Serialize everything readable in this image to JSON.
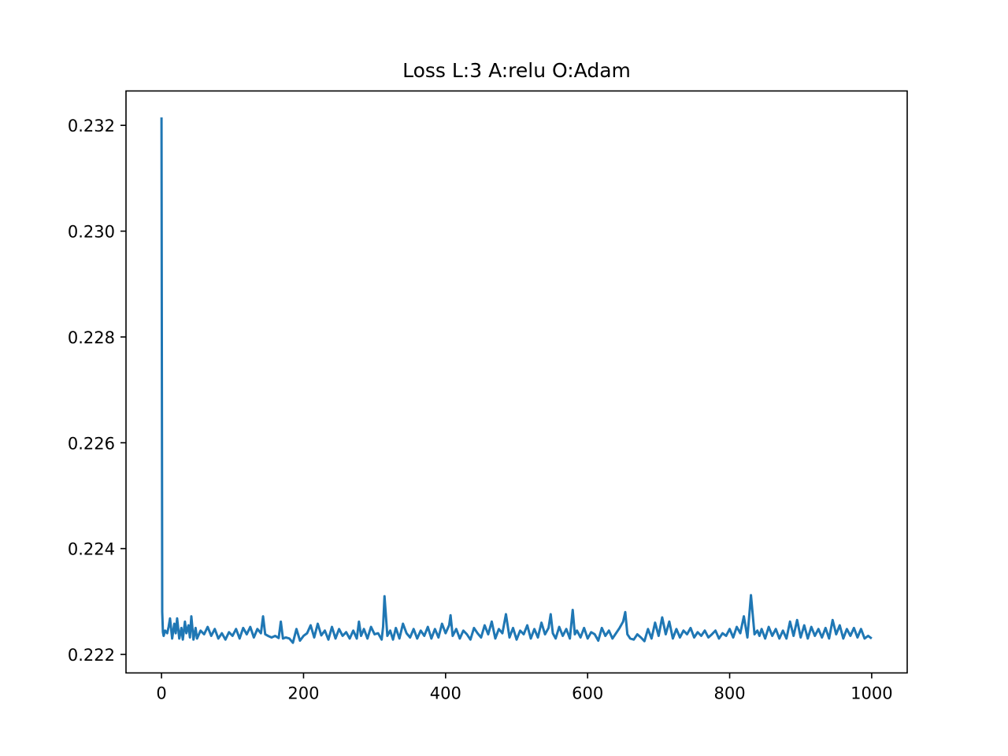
{
  "chart_data": {
    "type": "line",
    "title": "Loss L:3 A:relu O:Adam",
    "xlabel": "",
    "ylabel": "",
    "xlim": [
      -50,
      1050
    ],
    "ylim": [
      0.22165,
      0.23265
    ],
    "xticks": [
      0,
      200,
      400,
      600,
      800,
      1000
    ],
    "xtick_labels": [
      "0",
      "200",
      "400",
      "600",
      "800",
      "1000"
    ],
    "yticks": [
      0.222,
      0.224,
      0.226,
      0.228,
      0.23,
      0.232
    ],
    "ytick_labels": [
      "0.222",
      "0.224",
      "0.226",
      "0.228",
      "0.230",
      "0.232"
    ],
    "grid": false,
    "legend": "none",
    "series": [
      {
        "color": "#1f77b4",
        "x": [
          0,
          1,
          2,
          3,
          5,
          8,
          10,
          12,
          15,
          18,
          20,
          22,
          25,
          28,
          30,
          33,
          35,
          38,
          40,
          42,
          45,
          48,
          50,
          55,
          60,
          65,
          70,
          75,
          80,
          85,
          90,
          95,
          100,
          105,
          110,
          115,
          120,
          125,
          130,
          135,
          140,
          143,
          146,
          150,
          155,
          160,
          165,
          168,
          171,
          175,
          180,
          185,
          190,
          195,
          200,
          205,
          210,
          215,
          220,
          225,
          230,
          235,
          240,
          245,
          250,
          255,
          260,
          265,
          270,
          275,
          278,
          281,
          285,
          290,
          295,
          300,
          305,
          310,
          312,
          314,
          318,
          322,
          326,
          330,
          335,
          340,
          345,
          350,
          355,
          360,
          365,
          370,
          375,
          380,
          385,
          390,
          395,
          400,
          405,
          407,
          410,
          415,
          420,
          425,
          430,
          435,
          440,
          445,
          450,
          455,
          460,
          465,
          470,
          475,
          480,
          485,
          490,
          495,
          500,
          505,
          510,
          515,
          520,
          525,
          530,
          535,
          540,
          545,
          548,
          551,
          555,
          560,
          565,
          570,
          575,
          579,
          582,
          585,
          590,
          595,
          600,
          605,
          610,
          615,
          620,
          625,
          630,
          635,
          640,
          645,
          650,
          653,
          656,
          660,
          665,
          670,
          675,
          680,
          685,
          690,
          695,
          700,
          705,
          710,
          715,
          720,
          725,
          730,
          735,
          740,
          745,
          750,
          755,
          760,
          765,
          770,
          775,
          780,
          785,
          790,
          795,
          800,
          805,
          810,
          815,
          820,
          825,
          830,
          835,
          839,
          842,
          845,
          850,
          855,
          860,
          865,
          870,
          875,
          880,
          885,
          890,
          895,
          900,
          905,
          910,
          915,
          920,
          925,
          930,
          935,
          940,
          945,
          950,
          955,
          960,
          965,
          970,
          975,
          980,
          985,
          990,
          995,
          1000
        ],
        "y": [
          0.23215,
          0.2228,
          0.22242,
          0.22235,
          0.22245,
          0.2224,
          0.22252,
          0.22268,
          0.2223,
          0.22258,
          0.2224,
          0.22268,
          0.2223,
          0.2225,
          0.22228,
          0.22262,
          0.2224,
          0.22255,
          0.22232,
          0.22272,
          0.22228,
          0.2225,
          0.2223,
          0.22245,
          0.22238,
          0.22252,
          0.22235,
          0.22248,
          0.2223,
          0.2224,
          0.22228,
          0.22242,
          0.22235,
          0.22248,
          0.2223,
          0.2225,
          0.22238,
          0.22252,
          0.22232,
          0.22248,
          0.2224,
          0.22272,
          0.22238,
          0.22235,
          0.22232,
          0.22235,
          0.22231,
          0.22262,
          0.2223,
          0.22232,
          0.2223,
          0.22222,
          0.22248,
          0.22226,
          0.22235,
          0.2224,
          0.22255,
          0.22232,
          0.22258,
          0.22236,
          0.22245,
          0.22228,
          0.22252,
          0.2223,
          0.22248,
          0.22235,
          0.22242,
          0.2223,
          0.22245,
          0.2223,
          0.22262,
          0.22235,
          0.22248,
          0.2223,
          0.22252,
          0.22238,
          0.2224,
          0.22228,
          0.22252,
          0.2231,
          0.22235,
          0.22245,
          0.22228,
          0.2225,
          0.2223,
          0.22258,
          0.2224,
          0.22232,
          0.22248,
          0.2223,
          0.22245,
          0.22235,
          0.22252,
          0.2223,
          0.22248,
          0.22232,
          0.22258,
          0.2224,
          0.22255,
          0.22274,
          0.22235,
          0.22248,
          0.2223,
          0.22245,
          0.22238,
          0.22228,
          0.2225,
          0.2224,
          0.22232,
          0.22255,
          0.22238,
          0.22262,
          0.2223,
          0.22248,
          0.2224,
          0.22276,
          0.22232,
          0.2225,
          0.22228,
          0.22245,
          0.22238,
          0.22255,
          0.2223,
          0.22248,
          0.22232,
          0.2226,
          0.22238,
          0.2225,
          0.22276,
          0.2224,
          0.2223,
          0.22252,
          0.22235,
          0.22248,
          0.2223,
          0.22284,
          0.22238,
          0.22245,
          0.22232,
          0.2225,
          0.2223,
          0.22242,
          0.22238,
          0.22226,
          0.2225,
          0.22235,
          0.22245,
          0.2223,
          0.2224,
          0.2225,
          0.22262,
          0.2228,
          0.22238,
          0.2223,
          0.22228,
          0.22238,
          0.22232,
          0.22225,
          0.22248,
          0.2223,
          0.2226,
          0.22235,
          0.2227,
          0.22238,
          0.22262,
          0.2223,
          0.22248,
          0.22232,
          0.22245,
          0.22238,
          0.2225,
          0.22232,
          0.22242,
          0.22235,
          0.22245,
          0.22232,
          0.22238,
          0.22245,
          0.2223,
          0.2224,
          0.22235,
          0.22248,
          0.22232,
          0.22252,
          0.2224,
          0.22272,
          0.22232,
          0.22312,
          0.22238,
          0.22245,
          0.22235,
          0.22248,
          0.2223,
          0.22252,
          0.22235,
          0.22248,
          0.2223,
          0.22245,
          0.2223,
          0.22262,
          0.22235,
          0.22265,
          0.22232,
          0.22255,
          0.2223,
          0.22252,
          0.22235,
          0.22248,
          0.22232,
          0.2225,
          0.2223,
          0.22265,
          0.22238,
          0.22255,
          0.2223,
          0.22248,
          0.22235,
          0.2225,
          0.22232,
          0.22248,
          0.2223,
          0.22235,
          0.2223
        ]
      }
    ]
  }
}
